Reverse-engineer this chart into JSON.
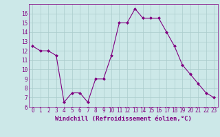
{
  "x": [
    0,
    1,
    2,
    3,
    4,
    5,
    6,
    7,
    8,
    9,
    10,
    11,
    12,
    13,
    14,
    15,
    16,
    17,
    18,
    19,
    20,
    21,
    22,
    23
  ],
  "y": [
    12.5,
    12.0,
    12.0,
    11.5,
    6.5,
    7.5,
    7.5,
    6.5,
    9.0,
    9.0,
    11.5,
    15.0,
    15.0,
    16.5,
    15.5,
    15.5,
    15.5,
    14.0,
    12.5,
    10.5,
    9.5,
    8.5,
    7.5,
    7.0
  ],
  "line_color": "#800080",
  "marker": "D",
  "marker_size": 2.0,
  "bg_color": "#cce8e8",
  "grid_color": "#aacccc",
  "xlabel": "Windchill (Refroidissement éolien,°C)",
  "ylim": [
    6,
    17
  ],
  "xlim": [
    -0.5,
    23.5
  ],
  "yticks": [
    6,
    7,
    8,
    9,
    10,
    11,
    12,
    13,
    14,
    15,
    16
  ],
  "xticks": [
    0,
    1,
    2,
    3,
    4,
    5,
    6,
    7,
    8,
    9,
    10,
    11,
    12,
    13,
    14,
    15,
    16,
    17,
    18,
    19,
    20,
    21,
    22,
    23
  ],
  "tick_label_fontsize": 5.5,
  "xlabel_fontsize": 6.5,
  "axis_label_color": "#800080",
  "spine_color": "#800080"
}
